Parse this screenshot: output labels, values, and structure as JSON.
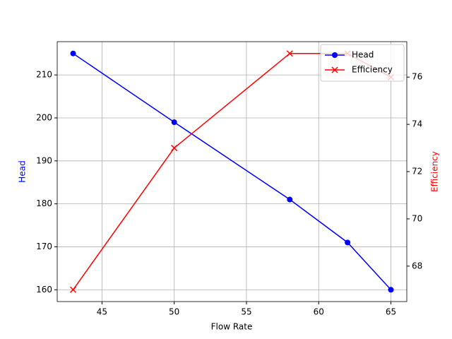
{
  "chart_data": {
    "type": "line",
    "x": [
      43,
      50,
      58,
      62,
      65
    ],
    "series": [
      {
        "name": "Head",
        "color": "#0000ff",
        "marker": "o",
        "values": [
          215,
          199,
          181,
          171,
          160
        ]
      },
      {
        "name": "Efficiency",
        "color": "#ff0000",
        "marker": "x",
        "axis": "y2",
        "values": [
          67,
          73,
          77,
          77,
          76
        ]
      }
    ],
    "xlabel": "Flow Rate",
    "ylabel": "Head",
    "y2label": "Efficiency",
    "xlim": [
      41.9,
      66.1
    ],
    "xticks": [
      45,
      50,
      55,
      60,
      65
    ],
    "ylim": [
      157.25,
      217.75
    ],
    "yticks": [
      160,
      170,
      180,
      190,
      200,
      210
    ],
    "y2lim": [
      66.5,
      77.5
    ],
    "y2ticks": [
      68,
      70,
      72,
      74,
      76
    ],
    "grid": true,
    "legend": "upper right"
  }
}
